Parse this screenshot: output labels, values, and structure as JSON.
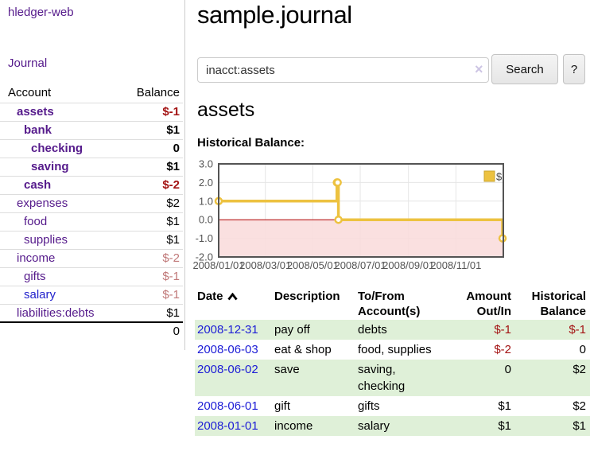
{
  "colors": {
    "link_purple": "#551a8b",
    "link_blue": "#2222cc",
    "date_link_blue": "#1d1dd6",
    "negative_strong": "#a31313",
    "negative_dim": "#c07878",
    "row_green": "#dff0d8",
    "chart_yellow": "#edc240",
    "zero_line_red": "#b30000",
    "negative_region_pink": "#f9dada",
    "grid_gray": "#e6e6e6",
    "plot_border_gray": "#545454"
  },
  "sidebar": {
    "brand": "hledger-web",
    "nav_journal": "Journal",
    "accounts_table": {
      "headers": {
        "account": "Account",
        "balance": "Balance"
      },
      "rows": [
        {
          "account": "assets",
          "balance": "$-1",
          "indent": 1,
          "active": true,
          "balance_tone": "negative"
        },
        {
          "account": "bank",
          "balance": "$1",
          "indent": 2,
          "active": true,
          "balance_tone": "normal"
        },
        {
          "account": "checking",
          "balance": "0",
          "indent": 3,
          "active": true,
          "balance_tone": "normal"
        },
        {
          "account": "saving",
          "balance": "$1",
          "indent": 3,
          "active": true,
          "balance_tone": "normal"
        },
        {
          "account": "cash",
          "balance": "$-2",
          "indent": 2,
          "active": true,
          "balance_tone": "negative"
        },
        {
          "account": "expenses",
          "balance": "$2",
          "indent": 1,
          "active": false,
          "balance_tone": "normal"
        },
        {
          "account": "food",
          "balance": "$1",
          "indent": 2,
          "active": false,
          "balance_tone": "normal"
        },
        {
          "account": "supplies",
          "balance": "$1",
          "indent": 2,
          "active": false,
          "balance_tone": "normal"
        },
        {
          "account": "income",
          "balance": "$-2",
          "indent": 1,
          "active": false,
          "balance_tone": "negative-dim"
        },
        {
          "account": "gifts",
          "balance": "$-1",
          "indent": 2,
          "active": false,
          "balance_tone": "negative-dim"
        },
        {
          "account": "salary",
          "balance": "$-1",
          "indent": 2,
          "active": false,
          "balance_tone": "negative-dim",
          "link_tone": "unvisited"
        },
        {
          "account": "liabilities:debts",
          "balance": "$1",
          "indent": 1,
          "active": false,
          "balance_tone": "normal"
        }
      ],
      "total": "0"
    }
  },
  "main": {
    "title": "sample.journal",
    "search": {
      "value": "inacct:assets",
      "clear": "×",
      "submit": "Search",
      "help": "?"
    },
    "account_heading": "assets",
    "section_label": "Historical Balance:"
  },
  "chart_data": {
    "type": "line",
    "step": true,
    "title": "Historical Balance",
    "series": [
      {
        "name": "$",
        "color": "#edc240",
        "points": [
          {
            "date": "2008-01-01",
            "value": 1
          },
          {
            "date": "2008-06-01",
            "value": 2
          },
          {
            "date": "2008-06-02",
            "value": 2
          },
          {
            "date": "2008-06-03",
            "value": 0
          },
          {
            "date": "2008-12-31",
            "value": -1
          }
        ]
      }
    ],
    "x_range": [
      "2008-01-01",
      "2009-01-01"
    ],
    "ylim": [
      -2.0,
      3.0
    ],
    "yticks": [
      {
        "v": 3,
        "label": "3.0"
      },
      {
        "v": 2,
        "label": "2.0"
      },
      {
        "v": 1,
        "label": "1.0"
      },
      {
        "v": 0,
        "label": "0.0"
      },
      {
        "v": -1,
        "label": "-1.0"
      },
      {
        "v": -2,
        "label": "-2.0"
      }
    ],
    "xticks": [
      {
        "date": "2008-01-01",
        "label": "2008/01/01"
      },
      {
        "date": "2008-03-01",
        "label": "2008/03/01"
      },
      {
        "date": "2008-05-01",
        "label": "2008/05/01"
      },
      {
        "date": "2008-07-01",
        "label": "2008/07/01"
      },
      {
        "date": "2008-09-01",
        "label": "2008/09/01"
      },
      {
        "date": "2008-11-01",
        "label": "2008/11/01"
      }
    ],
    "legend": {
      "label": "$",
      "position": "top-right"
    },
    "grid": true,
    "negative_region_shaded": true
  },
  "register": {
    "headers": [
      "Date",
      "Description",
      "To/From Account(s)",
      "Amount Out/In",
      "Historical Balance"
    ],
    "sort": {
      "column": "Date",
      "direction": "asc"
    },
    "rows": [
      {
        "date": "2008-12-31",
        "description": "pay off",
        "accounts": "debts",
        "amount": "$-1",
        "balance": "$-1",
        "amount_tone": "negative",
        "balance_tone": "negative"
      },
      {
        "date": "2008-06-03",
        "description": "eat & shop",
        "accounts": "food, supplies",
        "amount": "$-2",
        "balance": "0",
        "amount_tone": "negative",
        "balance_tone": "normal"
      },
      {
        "date": "2008-06-02",
        "description": "save",
        "accounts": "saving, checking",
        "amount": "0",
        "balance": "$2",
        "amount_tone": "normal",
        "balance_tone": "normal"
      },
      {
        "date": "2008-06-01",
        "description": "gift",
        "accounts": "gifts",
        "amount": "$1",
        "balance": "$2",
        "amount_tone": "normal",
        "balance_tone": "normal"
      },
      {
        "date": "2008-01-01",
        "description": "income",
        "accounts": "salary",
        "amount": "$1",
        "balance": "$1",
        "amount_tone": "normal",
        "balance_tone": "normal"
      }
    ]
  }
}
